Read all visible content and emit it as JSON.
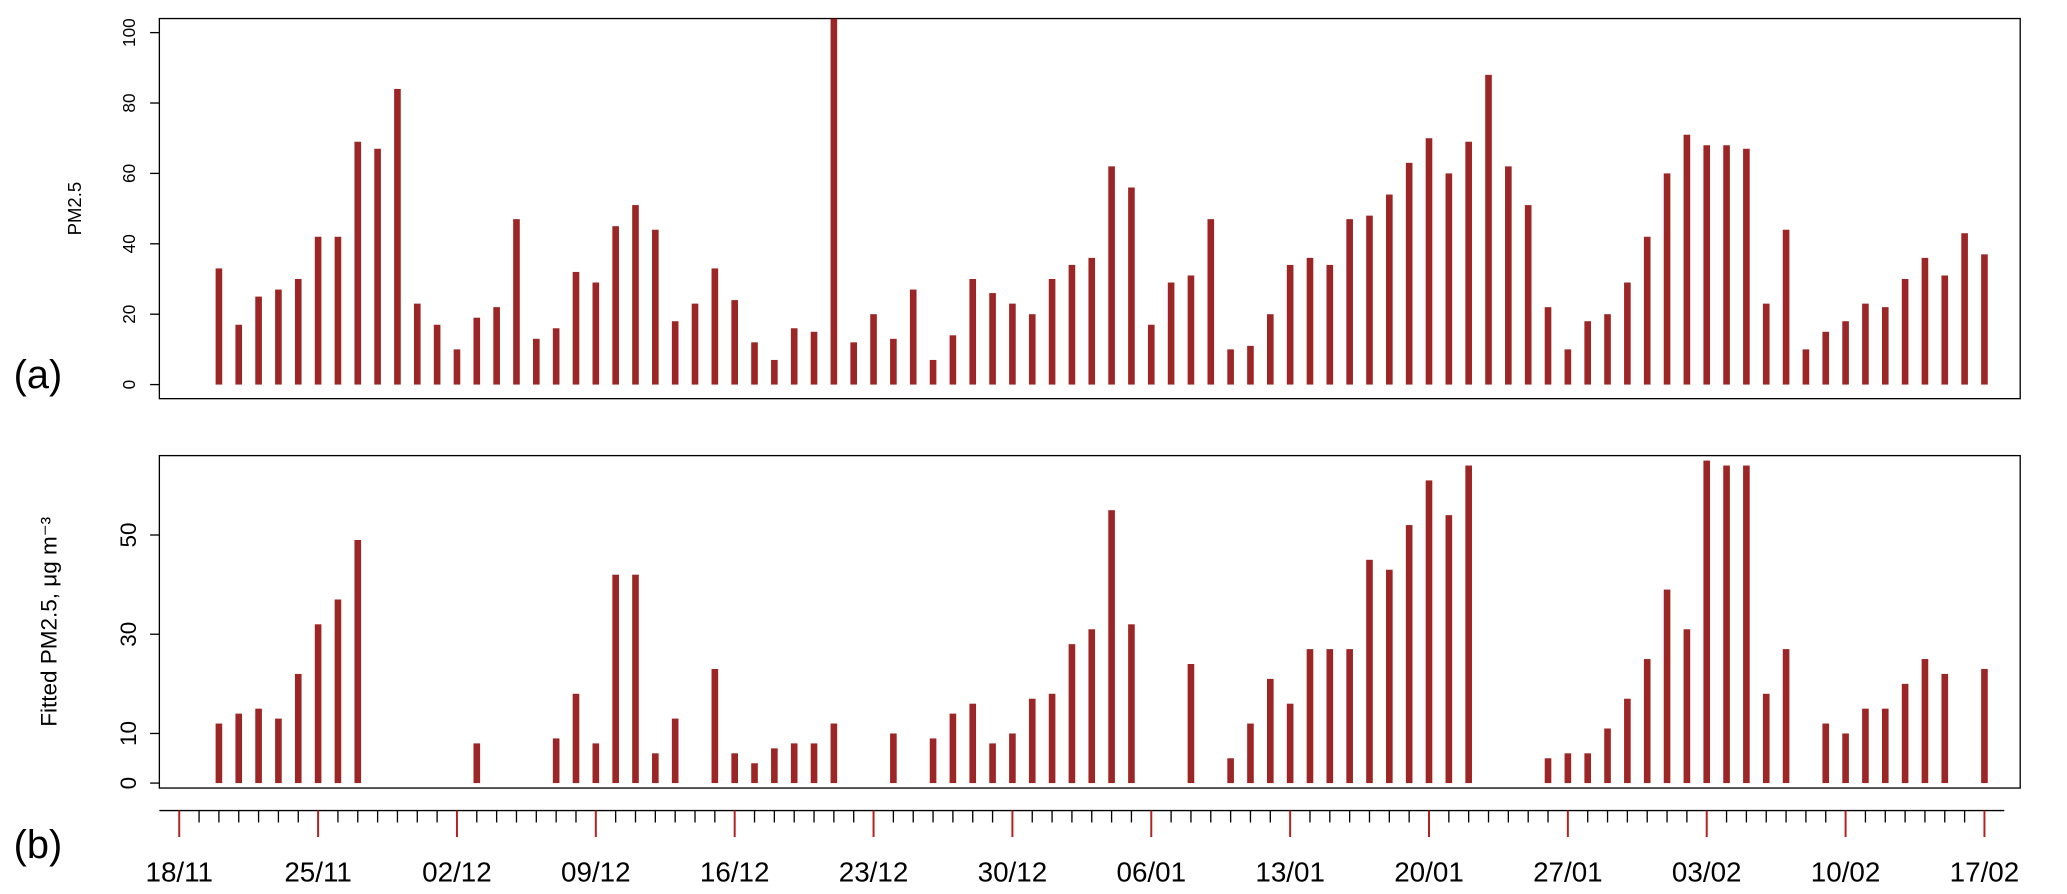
{
  "chart_data": [
    {
      "type": "bar",
      "panel_label": "(a)",
      "y_label": "PM2.5",
      "color": "#8b0000",
      "ylim": [
        -4,
        104
      ],
      "yticks": [
        0,
        20,
        40,
        60,
        80,
        100
      ],
      "values": [
        null,
        null,
        33,
        17,
        25,
        27,
        30,
        42,
        42,
        69,
        67,
        84,
        23,
        17,
        10,
        19,
        22,
        47,
        13,
        16,
        32,
        29,
        45,
        51,
        44,
        18,
        23,
        33,
        24,
        12,
        7,
        16,
        15,
        104,
        12,
        20,
        13,
        27,
        7,
        14,
        30,
        26,
        23,
        20,
        30,
        34,
        36,
        62,
        56,
        17,
        29,
        31,
        47,
        10,
        11,
        20,
        34,
        36,
        34,
        47,
        48,
        54,
        63,
        70,
        60,
        69,
        88,
        62,
        51,
        22,
        10,
        18,
        20,
        29,
        42,
        60,
        71,
        68,
        68,
        67,
        23,
        44,
        10,
        15,
        18,
        23,
        22,
        30,
        36,
        31,
        43,
        37
      ]
    },
    {
      "type": "bar",
      "panel_label": "(b)",
      "y_label": "Fitted PM2.5, μg m⁻³",
      "color": "#8b0000",
      "ylim": [
        -1,
        66
      ],
      "yticks": [
        0,
        10,
        30,
        50
      ],
      "categories": [
        "18/11",
        null,
        null,
        null,
        null,
        null,
        null,
        "25/11",
        null,
        null,
        null,
        null,
        null,
        null,
        "02/12",
        null,
        null,
        null,
        null,
        null,
        null,
        "09/12",
        null,
        null,
        null,
        null,
        null,
        null,
        "16/12",
        null,
        null,
        null,
        null,
        null,
        null,
        "23/12",
        null,
        null,
        null,
        null,
        null,
        null,
        "30/12",
        null,
        null,
        null,
        null,
        null,
        null,
        "06/01",
        null,
        null,
        null,
        null,
        null,
        null,
        "13/01",
        null,
        null,
        null,
        null,
        null,
        null,
        "20/01",
        null,
        null,
        null,
        null,
        null,
        null,
        "27/01",
        null,
        null,
        null,
        null,
        null,
        null,
        "03/02",
        null,
        null,
        null,
        null,
        null,
        null,
        "10/02",
        null,
        null,
        null,
        null,
        null,
        null,
        "17/02"
      ],
      "values": [
        null,
        null,
        12,
        14,
        15,
        13,
        22,
        32,
        37,
        49,
        null,
        null,
        null,
        null,
        null,
        8,
        null,
        null,
        null,
        9,
        18,
        8,
        42,
        42,
        6,
        13,
        null,
        23,
        6,
        4,
        7,
        8,
        8,
        12,
        null,
        null,
        10,
        null,
        9,
        14,
        16,
        8,
        10,
        17,
        18,
        28,
        31,
        55,
        32,
        null,
        null,
        24,
        null,
        5,
        12,
        21,
        16,
        27,
        27,
        27,
        45,
        43,
        52,
        61,
        54,
        64,
        null,
        null,
        null,
        5,
        6,
        6,
        11,
        17,
        25,
        39,
        31,
        65,
        64,
        64,
        18,
        27,
        null,
        12,
        10,
        15,
        15,
        20,
        25,
        22,
        null,
        23
      ]
    }
  ]
}
